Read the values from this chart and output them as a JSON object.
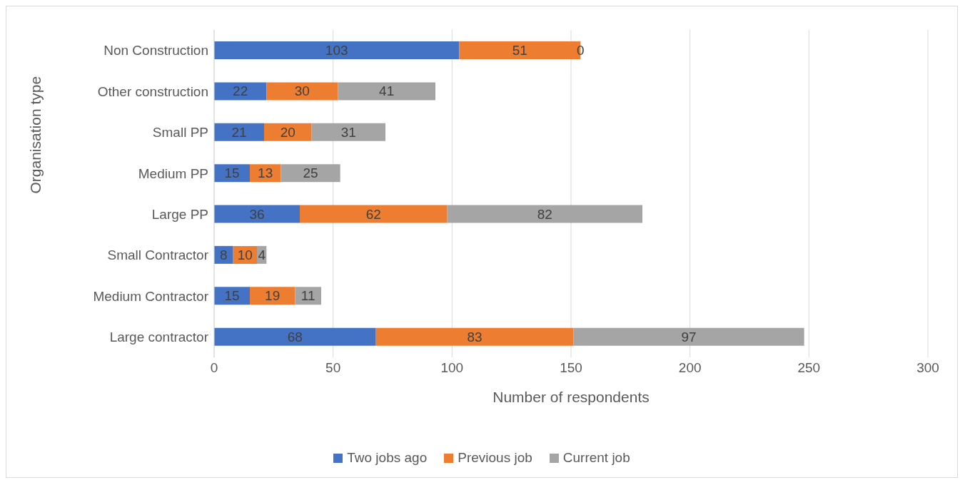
{
  "chart_data": {
    "type": "bar",
    "orientation": "horizontal",
    "stacked": true,
    "categories": [
      "Non Construction",
      "Other construction",
      "Small PP",
      "Medium PP",
      "Large PP",
      "Small Contractor",
      "Medium Contractor",
      "Large contractor"
    ],
    "series": [
      {
        "name": "Two jobs ago",
        "color": "#4472c4",
        "values": [
          103,
          22,
          21,
          15,
          36,
          8,
          15,
          68
        ]
      },
      {
        "name": "Previous job",
        "color": "#ed7d31",
        "values": [
          51,
          30,
          20,
          13,
          62,
          10,
          19,
          83
        ]
      },
      {
        "name": "Current job",
        "color": "#a5a5a5",
        "values": [
          0,
          41,
          31,
          25,
          82,
          4,
          11,
          97
        ]
      }
    ],
    "xlim": [
      0,
      300
    ],
    "xticks": [
      0,
      50,
      100,
      150,
      200,
      250,
      300
    ],
    "xlabel": "Number of respondents",
    "ylabel": "Organisation type",
    "grid": "x",
    "legend": "bottom",
    "data_labels": true
  }
}
